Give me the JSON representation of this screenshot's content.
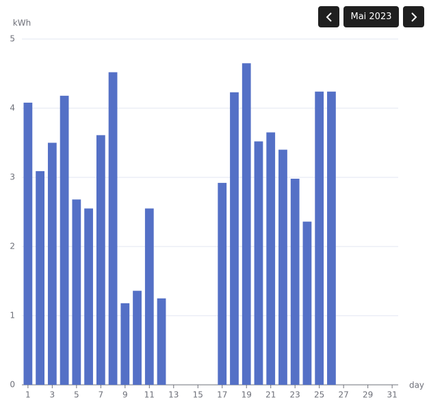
{
  "header": {
    "month": "Mai 2023"
  },
  "chart_data": {
    "type": "bar",
    "y_label": "kWh",
    "x_label": "day",
    "categories": [
      1,
      null,
      3,
      null,
      5,
      null,
      7,
      null,
      9,
      null,
      11,
      null,
      13,
      null,
      15,
      null,
      17,
      null,
      19,
      null,
      21,
      null,
      23,
      null,
      25,
      null,
      27,
      null,
      29,
      null,
      31
    ],
    "values": [
      4.08,
      3.09,
      3.5,
      4.18,
      2.68,
      2.55,
      3.61,
      4.52,
      1.18,
      1.36,
      2.55,
      1.25,
      null,
      null,
      null,
      null,
      2.92,
      4.23,
      4.65,
      3.52,
      3.65,
      3.4,
      2.98,
      2.36,
      4.24,
      4.24,
      null,
      null,
      null,
      null,
      null
    ],
    "color": "#5470c6",
    "ylim": [
      0,
      5
    ],
    "yticks": [
      0,
      1,
      2,
      3,
      4,
      5
    ],
    "grid": true
  }
}
